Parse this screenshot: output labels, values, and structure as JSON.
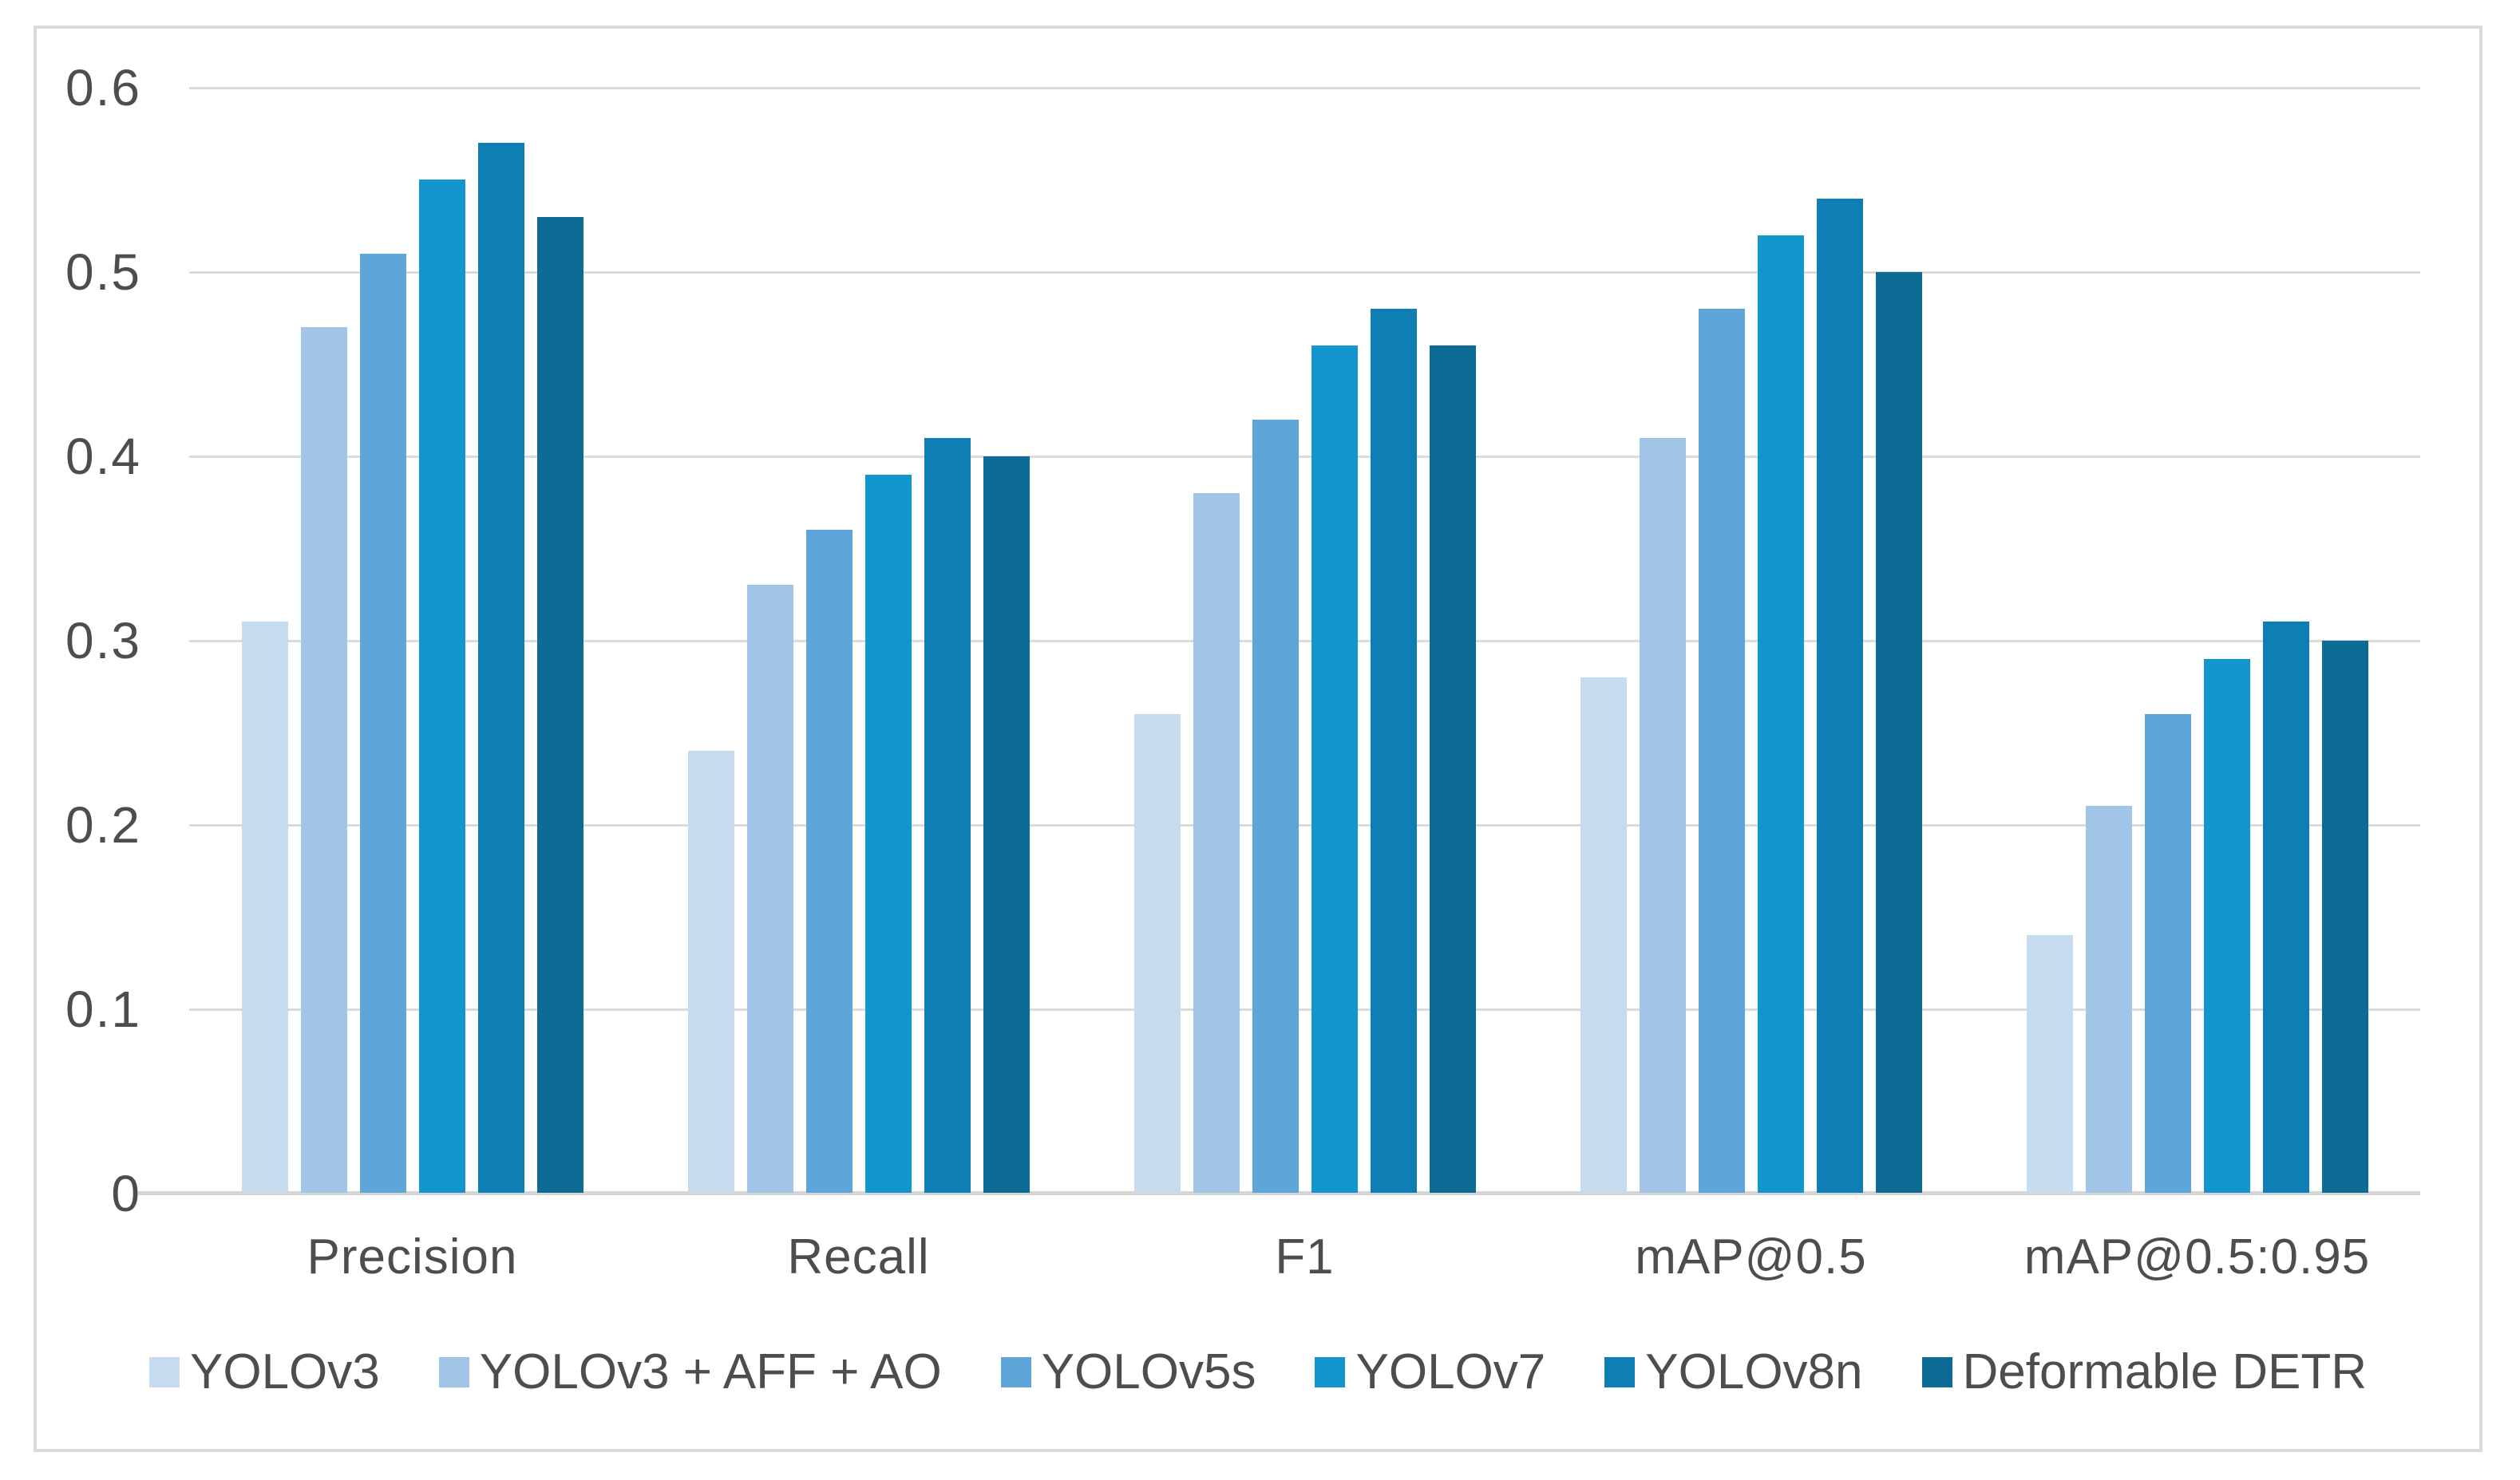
{
  "chart_data": {
    "type": "bar",
    "title": "",
    "categories": [
      "Precision",
      "Recall",
      "F1",
      "mAP@0.5",
      "mAP@0.5:0.95"
    ],
    "series": [
      {
        "name": "YOLOv3",
        "color": "#C7DBEF",
        "values": [
          0.31,
          0.24,
          0.26,
          0.28,
          0.14
        ]
      },
      {
        "name": "YOLOv3 + AFF + AO",
        "color": "#A1C5E6",
        "values": [
          0.47,
          0.33,
          0.38,
          0.41,
          0.21
        ]
      },
      {
        "name": "YOLOv5s",
        "color": "#5EA6D9",
        "values": [
          0.51,
          0.36,
          0.42,
          0.48,
          0.26
        ]
      },
      {
        "name": "YOLOv7",
        "color": "#1395CD",
        "values": [
          0.55,
          0.39,
          0.46,
          0.52,
          0.29
        ]
      },
      {
        "name": "YOLOv8n",
        "color": "#0F7EB4",
        "values": [
          0.57,
          0.41,
          0.48,
          0.54,
          0.31
        ]
      },
      {
        "name": "Deformable DETR",
        "color": "#0D6C95",
        "values": [
          0.53,
          0.4,
          0.46,
          0.5,
          0.3
        ]
      }
    ],
    "y_axis": {
      "min": 0,
      "max": 0.6,
      "step": 0.1,
      "tick_labels": [
        "0.6",
        "0.5",
        "0.4",
        "0.3",
        "0.2",
        "0.1",
        "0"
      ]
    },
    "x_axis_label": "",
    "grid": true,
    "legend_position": "bottom",
    "colors": {
      "gridline": "#DBDBDB",
      "axis_line": "#D6D6D6",
      "frame_border": "#D9D9D9",
      "text": "#4D4D4D",
      "background": "#FFFFFF"
    }
  }
}
